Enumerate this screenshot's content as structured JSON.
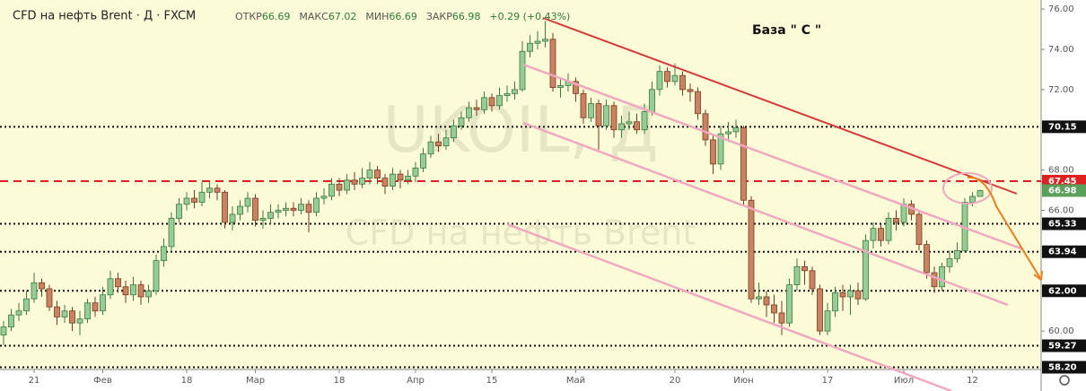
{
  "chart_data": {
    "type": "candlestick",
    "title": "CFD на нефть Brent · Д · FXCM",
    "ohlc_labels": [
      "ОТКР",
      "МАКС",
      "МИН",
      "ЗАКР"
    ],
    "change_label": "+0.29 (+0.43%)",
    "watermark": "UKOIL, Д",
    "watermark_sub": "CFD на нефть Brent",
    "annotation": "База \" С \"",
    "up_color": "#96cc96",
    "down_color": "#c98262",
    "ylim": [
      58.09,
      76.45
    ],
    "yticks": [
      {
        "value": 76,
        "label": "76.00"
      },
      {
        "value": 74,
        "label": "74.00"
      },
      {
        "value": 72,
        "label": "72.00"
      },
      {
        "value": 68,
        "label": "68.00"
      },
      {
        "value": 66,
        "label": "66.00"
      },
      {
        "value": 60,
        "label": "60.00"
      }
    ],
    "levels": [
      70.15,
      65.33,
      63.94,
      {
        "value": 62,
        "label": "62.00"
      },
      59.27,
      {
        "value": 58.2,
        "label": "58.20"
      }
    ],
    "resistance": 67.45,
    "categories": [
      null,
      null,
      null,
      null,
      "21",
      null,
      null,
      null,
      null,
      null,
      null,
      null,
      null,
      "Фев",
      null,
      null,
      null,
      null,
      null,
      null,
      null,
      null,
      null,
      null,
      "18",
      null,
      null,
      null,
      null,
      null,
      null,
      null,
      null,
      "Мар",
      null,
      null,
      null,
      null,
      null,
      null,
      null,
      null,
      null,
      null,
      "18",
      null,
      null,
      null,
      null,
      null,
      null,
      null,
      null,
      null,
      "Апр",
      null,
      null,
      null,
      null,
      null,
      null,
      null,
      null,
      null,
      "15",
      null,
      null,
      null,
      null,
      null,
      null,
      null,
      null,
      null,
      null,
      "Май",
      null,
      null,
      null,
      null,
      null,
      null,
      null,
      null,
      null,
      null,
      null,
      null,
      "20",
      null,
      null,
      null,
      null,
      null,
      null,
      null,
      null,
      "Июн",
      null,
      null,
      null,
      null,
      null,
      null,
      null,
      null,
      null,
      null,
      "17",
      null,
      null,
      null,
      null,
      null,
      null,
      null,
      null,
      null,
      "Июл",
      null,
      null,
      null,
      null,
      null,
      null,
      null,
      null,
      "12",
      null
    ],
    "open": [
      59.8,
      60.2,
      60.8,
      61.0,
      61.6,
      62.4,
      62.1,
      61.2,
      60.7,
      61.0,
      60.4,
      60.6,
      61.4,
      61.0,
      61.8,
      62.6,
      62.2,
      61.8,
      62.3,
      61.7,
      62.0,
      63.5,
      64.2,
      65.6,
      66.3,
      66.6,
      66.4,
      66.9,
      67.1,
      66.9,
      65.4,
      65.8,
      66.2,
      66.6,
      65.5,
      65.6,
      65.9,
      66.0,
      66.1,
      66.0,
      66.3,
      65.9,
      66.6,
      66.7,
      67.3,
      67.0,
      67.5,
      67.3,
      67.6,
      68.0,
      67.6,
      67.2,
      67.8,
      67.5,
      67.7,
      68.1,
      68.8,
      69.4,
      69.2,
      69.6,
      70.2,
      70.6,
      71.1,
      71.0,
      71.6,
      71.2,
      71.7,
      71.8,
      72.0,
      73.9,
      74.3,
      74.4,
      74.5,
      72.1,
      72.2,
      72.4,
      71.8,
      70.6,
      71.3,
      70.2,
      71.2,
      70.0,
      70.3,
      70.4,
      70.0,
      70.9,
      72.0,
      72.9,
      72.4,
      72.7,
      72.0,
      71.9,
      70.8,
      69.5,
      68.3,
      69.8,
      69.9,
      70.1,
      66.5,
      61.6,
      61.7,
      61.3,
      60.9,
      60.4,
      62.3,
      63.2,
      63.0,
      62.1,
      60.0,
      61.0,
      61.9,
      61.7,
      62.0,
      61.6,
      64.5,
      65.1,
      64.5,
      65.6,
      65.4,
      66.3,
      65.8,
      64.3,
      62.9,
      62.2,
      63.2,
      63.6,
      64.0,
      66.4,
      66.69
    ],
    "high": [
      60.5,
      61.1,
      61.4,
      62.0,
      62.9,
      62.6,
      62.3,
      61.5,
      61.3,
      61.2,
      61.0,
      61.6,
      61.7,
      62.2,
      63.0,
      62.9,
      62.5,
      62.7,
      62.5,
      62.3,
      63.8,
      64.6,
      65.9,
      66.6,
      66.9,
      67.0,
      67.4,
      67.4,
      67.3,
      67.0,
      66.2,
      66.5,
      66.9,
      66.8,
      66.0,
      66.3,
      66.3,
      66.4,
      66.4,
      66.6,
      66.5,
      66.9,
      67.1,
      67.6,
      67.6,
      67.8,
      67.9,
      68.1,
      68.4,
      68.2,
      67.8,
      68.1,
      68.0,
      68.0,
      68.4,
      69.1,
      69.7,
      69.8,
      70.0,
      70.5,
      70.9,
      71.4,
      71.5,
      71.9,
      71.8,
      72.1,
      72.2,
      72.4,
      74.4,
      74.7,
      74.9,
      75.4,
      74.8,
      72.6,
      72.8,
      72.6,
      72.0,
      71.6,
      71.5,
      71.5,
      71.4,
      70.7,
      70.9,
      70.8,
      71.3,
      72.4,
      73.2,
      73.1,
      73.3,
      72.9,
      72.3,
      72.1,
      71.0,
      69.8,
      70.2,
      70.4,
      70.5,
      70.2,
      66.7,
      62.4,
      62.0,
      61.8,
      61.5,
      62.6,
      63.6,
      63.5,
      63.2,
      62.3,
      61.4,
      62.2,
      62.3,
      62.3,
      62.4,
      64.8,
      65.4,
      65.3,
      65.9,
      66.0,
      66.6,
      66.5,
      66.0,
      64.5,
      63.2,
      63.4,
      64.0,
      64.4,
      66.6,
      66.9,
      67.02
    ],
    "low": [
      59.3,
      60.0,
      60.5,
      60.8,
      61.4,
      61.7,
      61.0,
      60.3,
      60.4,
      60.0,
      59.8,
      60.4,
      60.7,
      60.8,
      61.6,
      61.9,
      61.4,
      61.5,
      61.3,
      61.4,
      61.8,
      63.2,
      64.0,
      65.4,
      66.0,
      66.1,
      66.2,
      66.6,
      66.5,
      65.1,
      65.0,
      65.5,
      65.9,
      65.2,
      65.1,
      65.3,
      65.6,
      65.7,
      65.7,
      65.8,
      64.9,
      65.7,
      66.3,
      66.5,
      66.7,
      66.8,
      67.0,
      67.1,
      67.3,
      67.3,
      66.8,
      67.0,
      67.1,
      67.3,
      67.4,
      67.9,
      68.6,
      68.9,
      69.0,
      69.4,
      70.0,
      70.4,
      70.7,
      70.8,
      70.9,
      71.0,
      71.4,
      71.5,
      71.9,
      73.6,
      74.0,
      74.1,
      71.9,
      71.6,
      71.9,
      71.4,
      70.3,
      70.4,
      69.0,
      70.0,
      69.6,
      69.6,
      70.0,
      69.8,
      69.8,
      70.7,
      71.7,
      72.1,
      72.2,
      71.7,
      71.4,
      70.5,
      69.2,
      67.8,
      68.0,
      69.4,
      69.6,
      66.2,
      61.4,
      61.3,
      60.7,
      60.4,
      59.8,
      60.2,
      62.0,
      62.3,
      61.8,
      59.8,
      59.8,
      60.7,
      61.0,
      60.8,
      61.3,
      61.5,
      64.1,
      64.2,
      64.3,
      65.0,
      65.2,
      65.5,
      64.0,
      62.6,
      61.9,
      62.0,
      62.9,
      63.4,
      63.9,
      66.2,
      66.69
    ],
    "close": [
      60.2,
      60.8,
      61.0,
      61.6,
      62.4,
      62.1,
      61.2,
      60.7,
      61.0,
      60.4,
      60.6,
      61.4,
      61.0,
      61.8,
      62.6,
      62.2,
      61.8,
      62.3,
      61.7,
      62.0,
      63.5,
      64.2,
      65.6,
      66.3,
      66.6,
      66.4,
      66.9,
      67.1,
      66.9,
      65.4,
      65.8,
      66.2,
      66.6,
      65.5,
      65.6,
      65.9,
      66.0,
      66.1,
      66.0,
      66.3,
      65.9,
      66.6,
      66.7,
      67.3,
      67.0,
      67.5,
      67.3,
      67.6,
      68.0,
      67.6,
      67.2,
      67.8,
      67.5,
      67.7,
      68.1,
      68.8,
      69.4,
      69.2,
      69.6,
      70.2,
      70.6,
      71.1,
      71.0,
      71.6,
      71.2,
      71.7,
      71.8,
      72.0,
      73.9,
      74.3,
      74.4,
      74.5,
      72.1,
      72.2,
      72.4,
      71.8,
      70.6,
      71.3,
      70.2,
      71.2,
      70.0,
      70.3,
      70.4,
      70.0,
      70.9,
      72.0,
      72.9,
      72.4,
      72.7,
      72.0,
      71.9,
      70.8,
      69.5,
      68.3,
      69.8,
      69.9,
      70.1,
      66.5,
      61.6,
      61.7,
      61.3,
      60.9,
      60.4,
      62.3,
      63.2,
      63.0,
      62.1,
      60.0,
      61.0,
      61.9,
      61.7,
      62.0,
      61.6,
      64.5,
      65.1,
      64.5,
      65.6,
      65.4,
      66.3,
      65.8,
      64.3,
      62.9,
      62.2,
      63.2,
      63.6,
      64.0,
      66.4,
      66.69,
      66.98
    ]
  }
}
